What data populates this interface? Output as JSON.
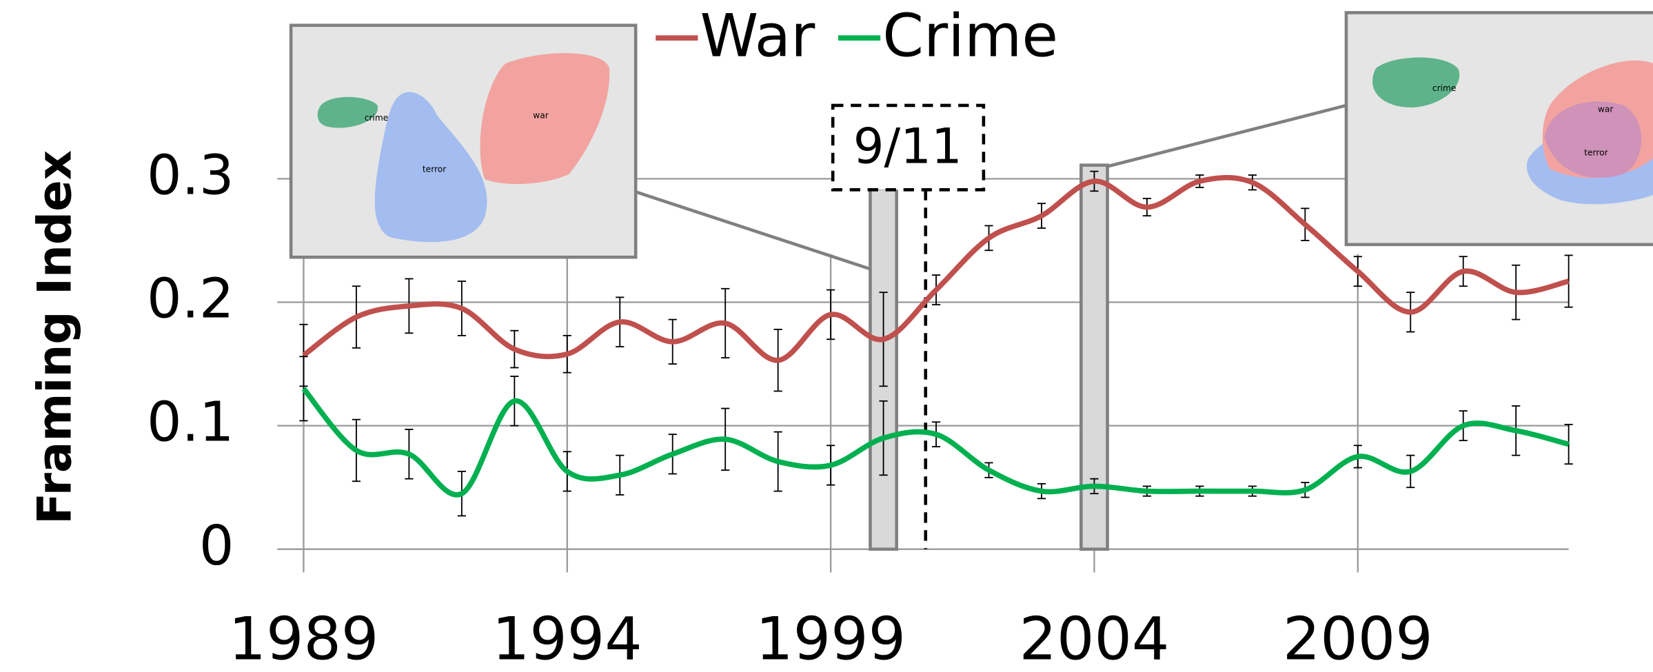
{
  "chart_data": {
    "type": "line",
    "y_label": "Framing Index",
    "x": [
      1989,
      1990,
      1991,
      1992,
      1993,
      1994,
      1995,
      1996,
      1997,
      1998,
      1999,
      2000,
      2001,
      2002,
      2003,
      2004,
      2005,
      2006,
      2007,
      2008,
      2009,
      2010,
      2011,
      2012,
      2013
    ],
    "series": [
      {
        "name": "War",
        "color": "#c0504d",
        "values": [
          0.157,
          0.188,
          0.197,
          0.195,
          0.162,
          0.158,
          0.184,
          0.168,
          0.183,
          0.153,
          0.19,
          0.17,
          0.21,
          0.252,
          0.27,
          0.298,
          0.277,
          0.298,
          0.297,
          0.263,
          0.225,
          0.192,
          0.225,
          0.208,
          0.217
        ],
        "errors": [
          0.025,
          0.025,
          0.022,
          0.022,
          0.015,
          0.015,
          0.02,
          0.018,
          0.028,
          0.025,
          0.02,
          0.038,
          0.012,
          0.01,
          0.01,
          0.008,
          0.007,
          0.005,
          0.006,
          0.013,
          0.012,
          0.016,
          0.012,
          0.022,
          0.021
        ]
      },
      {
        "name": "Crime",
        "color": "#00b050",
        "values": [
          0.13,
          0.08,
          0.077,
          0.045,
          0.12,
          0.063,
          0.06,
          0.077,
          0.089,
          0.071,
          0.068,
          0.09,
          0.093,
          0.064,
          0.047,
          0.051,
          0.047,
          0.047,
          0.047,
          0.048,
          0.075,
          0.063,
          0.1,
          0.096,
          0.085
        ],
        "errors": [
          0.026,
          0.025,
          0.02,
          0.018,
          0.02,
          0.016,
          0.016,
          0.016,
          0.025,
          0.024,
          0.016,
          0.03,
          0.01,
          0.006,
          0.006,
          0.006,
          0.004,
          0.004,
          0.004,
          0.006,
          0.009,
          0.013,
          0.012,
          0.02,
          0.016
        ]
      }
    ],
    "xlim": [
      1988.5,
      2013
    ],
    "xticks": [
      1989,
      1994,
      1999,
      2004,
      2009
    ],
    "ylim": [
      0,
      0.35
    ],
    "yticks": [
      0,
      0.1,
      0.2,
      0.3
    ],
    "grid": true,
    "legend": "top",
    "highlight_years": [
      2000,
      2004
    ],
    "event": {
      "label": "9/11",
      "x": 2000.8
    },
    "insets": [
      {
        "labels": [
          "crime",
          "terror",
          "war"
        ]
      },
      {
        "labels": [
          "crime",
          "war",
          "terror"
        ]
      }
    ]
  }
}
